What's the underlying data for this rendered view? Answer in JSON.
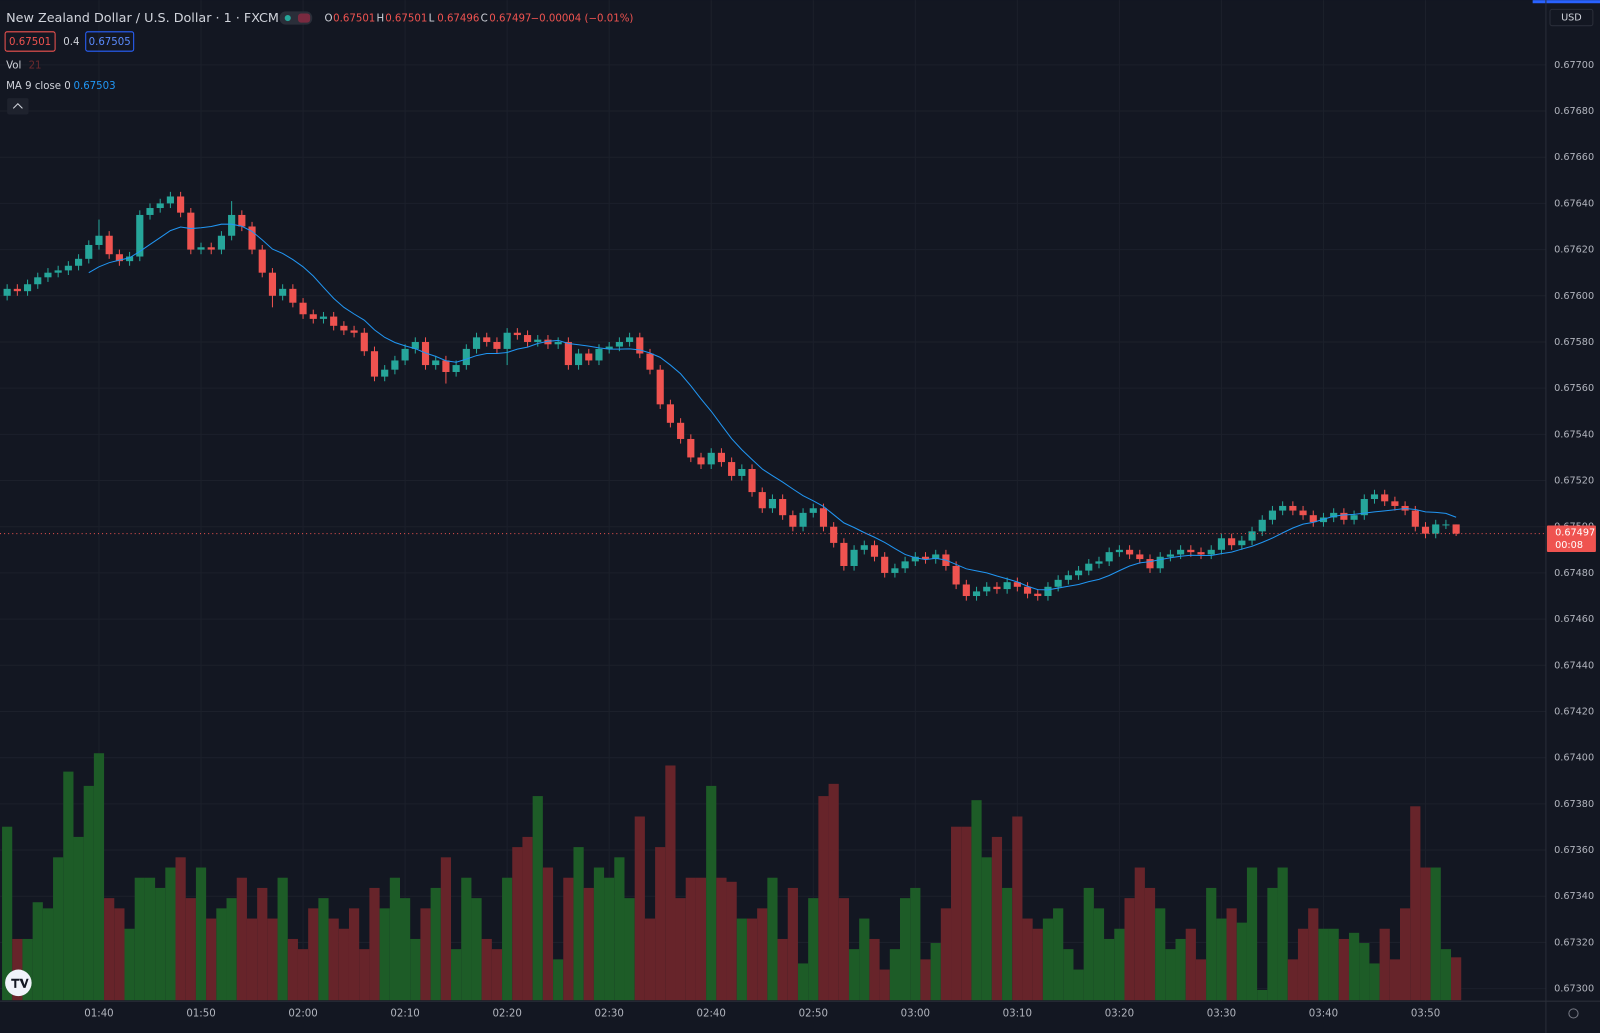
{
  "chart_data": {
    "type": "candlestick",
    "title": "New Zealand Dollar / U.S. Dollar · 1 · FXCM",
    "ohlc_legend": [
      {
        "label": "O",
        "value": 0.67501
      },
      {
        "label": "H",
        "value": 0.67501
      },
      {
        "label": "L",
        "value": 0.67496
      },
      {
        "label": "C",
        "value": 0.67497
      }
    ],
    "change": "−0.00004 (−0.01%)",
    "sell_price": 0.67501,
    "spread": 0.4,
    "buy_price": 0.67505,
    "volume_label": "Vol",
    "volume_last": 21,
    "ma_label": "MA 9 close 0",
    "ma_value": 0.67503,
    "currency": "USD",
    "last_price": 0.67497,
    "countdown": "00:08",
    "categories": [
      null,
      null,
      null,
      null,
      null,
      null,
      null,
      null,
      null,
      "01:40",
      null,
      null,
      null,
      null,
      null,
      null,
      null,
      null,
      null,
      "01:50",
      null,
      null,
      null,
      null,
      null,
      null,
      null,
      null,
      null,
      "02:00",
      null,
      null,
      null,
      null,
      null,
      null,
      null,
      null,
      null,
      "02:10",
      null,
      null,
      null,
      null,
      null,
      null,
      null,
      null,
      null,
      "02:20",
      null,
      null,
      null,
      null,
      null,
      null,
      null,
      null,
      null,
      "02:30",
      null,
      null,
      null,
      null,
      null,
      null,
      null,
      null,
      null,
      "02:40",
      null,
      null,
      null,
      null,
      null,
      null,
      null,
      null,
      null,
      "02:50",
      null,
      null,
      null,
      null,
      null,
      null,
      null,
      null,
      null,
      "03:00",
      null,
      null,
      null,
      null,
      null,
      null,
      null,
      null,
      null,
      "03:10",
      null,
      null,
      null,
      null,
      null,
      null,
      null,
      null,
      null,
      "03:20",
      null,
      null,
      null,
      null,
      null,
      null,
      null,
      null,
      null,
      "03:30",
      null,
      null,
      null,
      null,
      null,
      null,
      null,
      null,
      null,
      "03:40",
      null,
      null,
      null,
      null,
      null,
      null,
      null,
      null,
      null,
      "03:50",
      null,
      null,
      null
    ],
    "open": [
      0.676,
      0.67603,
      0.67602,
      0.67605,
      0.67608,
      0.6761,
      0.67611,
      0.67613,
      0.67616,
      0.67622,
      0.67626,
      0.67618,
      0.67615,
      0.67617,
      0.67635,
      0.67638,
      0.6764,
      0.67643,
      0.67636,
      0.6762,
      0.67621,
      0.6762,
      0.67626,
      0.67635,
      0.6763,
      0.6762,
      0.6761,
      0.676,
      0.67603,
      0.67597,
      0.67592,
      0.6759,
      0.67591,
      0.67587,
      0.67585,
      0.67584,
      0.67576,
      0.67565,
      0.67568,
      0.67572,
      0.67577,
      0.6758,
      0.6757,
      0.67572,
      0.67567,
      0.6757,
      0.67577,
      0.67582,
      0.6758,
      0.67577,
      0.67584,
      0.67583,
      0.6758,
      0.67581,
      0.67579,
      0.6758,
      0.6757,
      0.67575,
      0.67572,
      0.67577,
      0.67578,
      0.6758,
      0.67582,
      0.67575,
      0.67568,
      0.67553,
      0.67545,
      0.67538,
      0.6753,
      0.67527,
      0.67532,
      0.67528,
      0.67522,
      0.67525,
      0.67515,
      0.67508,
      0.67512,
      0.67505,
      0.675,
      0.67506,
      0.67508,
      0.675,
      0.67493,
      0.67483,
      0.6749,
      0.67492,
      0.67487,
      0.6748,
      0.67482,
      0.67485,
      0.67487,
      0.67486,
      0.67488,
      0.67483,
      0.67475,
      0.6747,
      0.67472,
      0.67474,
      0.67473,
      0.67476,
      0.67474,
      0.67471,
      0.6747,
      0.67474,
      0.67477,
      0.67479,
      0.67481,
      0.67484,
      0.67485,
      0.67489,
      0.6749,
      0.67488,
      0.67486,
      0.67482,
      0.67487,
      0.67488,
      0.6749,
      0.67489,
      0.67488,
      0.6749,
      0.67495,
      0.67492,
      0.67494,
      0.67498,
      0.67503,
      0.67507,
      0.67509,
      0.67507,
      0.67505,
      0.67502,
      0.67504,
      0.67506,
      0.67503,
      0.67505,
      0.67512,
      0.67514,
      0.67511,
      0.67509,
      0.67507,
      0.675,
      0.67497,
      0.67501,
      0.67501
    ],
    "high": [
      0.67605,
      0.67605,
      0.67607,
      0.6761,
      0.67612,
      0.67613,
      0.67615,
      0.67618,
      0.67624,
      0.67633,
      0.67628,
      0.6762,
      0.67619,
      0.67637,
      0.6764,
      0.67642,
      0.67645,
      0.67645,
      0.67638,
      0.67623,
      0.67623,
      0.67628,
      0.67641,
      0.67637,
      0.67632,
      0.67622,
      0.67612,
      0.67605,
      0.67605,
      0.67599,
      0.67594,
      0.67593,
      0.67593,
      0.67589,
      0.67587,
      0.67586,
      0.67578,
      0.6757,
      0.67574,
      0.67579,
      0.67582,
      0.67582,
      0.67574,
      0.67574,
      0.67572,
      0.67579,
      0.67584,
      0.67584,
      0.67582,
      0.67586,
      0.67586,
      0.67585,
      0.67583,
      0.67583,
      0.67582,
      0.67582,
      0.67577,
      0.67577,
      0.67579,
      0.6758,
      0.67582,
      0.67584,
      0.67584,
      0.67577,
      0.6757,
      0.67555,
      0.67547,
      0.6754,
      0.67532,
      0.67534,
      0.67534,
      0.6753,
      0.67527,
      0.67527,
      0.67517,
      0.67514,
      0.67514,
      0.67507,
      0.67508,
      0.6751,
      0.6751,
      0.67502,
      0.67495,
      0.67492,
      0.67494,
      0.67494,
      0.67489,
      0.67484,
      0.67487,
      0.67489,
      0.67489,
      0.6749,
      0.6749,
      0.67485,
      0.67477,
      0.67474,
      0.67476,
      0.67476,
      0.67478,
      0.67478,
      0.67476,
      0.67473,
      0.67476,
      0.67479,
      0.67481,
      0.67483,
      0.67486,
      0.67487,
      0.67491,
      0.67492,
      0.67492,
      0.6749,
      0.67488,
      0.67489,
      0.6749,
      0.67492,
      0.67492,
      0.67491,
      0.67492,
      0.67497,
      0.67497,
      0.67496,
      0.675,
      0.67505,
      0.67509,
      0.67511,
      0.67511,
      0.67509,
      0.67507,
      0.67506,
      0.67508,
      0.67508,
      0.67507,
      0.67514,
      0.67516,
      0.67516,
      0.67513,
      0.67511,
      0.67509,
      0.67502,
      0.67503,
      0.67503,
      0.67501
    ],
    "low": [
      0.67598,
      0.676,
      0.676,
      0.67603,
      0.67606,
      0.67608,
      0.67609,
      0.67611,
      0.67614,
      0.6762,
      0.67616,
      0.67613,
      0.67613,
      0.67615,
      0.67633,
      0.67636,
      0.67638,
      0.67634,
      0.67618,
      0.67618,
      0.67618,
      0.67618,
      0.67624,
      0.67628,
      0.67618,
      0.67608,
      0.67595,
      0.67598,
      0.67595,
      0.6759,
      0.67588,
      0.67588,
      0.67585,
      0.67583,
      0.67582,
      0.67574,
      0.67563,
      0.67563,
      0.67566,
      0.6757,
      0.67575,
      0.67568,
      0.67568,
      0.67562,
      0.67565,
      0.67568,
      0.67575,
      0.67578,
      0.67575,
      0.6757,
      0.67581,
      0.67578,
      0.67578,
      0.67577,
      0.67577,
      0.67568,
      0.67568,
      0.6757,
      0.6757,
      0.67575,
      0.67576,
      0.67578,
      0.67573,
      0.67566,
      0.67551,
      0.67543,
      0.67536,
      0.67528,
      0.67525,
      0.67525,
      0.67526,
      0.6752,
      0.6752,
      0.67513,
      0.67506,
      0.67506,
      0.67503,
      0.67498,
      0.67498,
      0.67504,
      0.67498,
      0.67491,
      0.67481,
      0.67481,
      0.67488,
      0.67485,
      0.67478,
      0.67478,
      0.6748,
      0.67483,
      0.67484,
      0.67484,
      0.67481,
      0.67473,
      0.67468,
      0.67468,
      0.6747,
      0.67471,
      0.67471,
      0.67472,
      0.67469,
      0.67468,
      0.67468,
      0.67472,
      0.67475,
      0.67477,
      0.67479,
      0.67482,
      0.67483,
      0.67487,
      0.67486,
      0.67484,
      0.6748,
      0.6748,
      0.67485,
      0.67486,
      0.67487,
      0.67486,
      0.67486,
      0.67488,
      0.6749,
      0.6749,
      0.67492,
      0.67496,
      0.67501,
      0.67505,
      0.67505,
      0.67503,
      0.675,
      0.675,
      0.67502,
      0.67501,
      0.67501,
      0.67503,
      0.6751,
      0.67509,
      0.67507,
      0.67505,
      0.67498,
      0.67495,
      0.67495,
      0.67499,
      0.67496
    ],
    "close": [
      0.67603,
      0.67602,
      0.67605,
      0.67608,
      0.6761,
      0.67611,
      0.67613,
      0.67616,
      0.67622,
      0.67626,
      0.67618,
      0.67615,
      0.67617,
      0.67635,
      0.67638,
      0.6764,
      0.67643,
      0.67636,
      0.6762,
      0.67621,
      0.6762,
      0.67626,
      0.67635,
      0.6763,
      0.6762,
      0.6761,
      0.676,
      0.67603,
      0.67597,
      0.67592,
      0.6759,
      0.67591,
      0.67587,
      0.67585,
      0.67584,
      0.67576,
      0.67565,
      0.67568,
      0.67572,
      0.67577,
      0.6758,
      0.6757,
      0.67572,
      0.67567,
      0.6757,
      0.67577,
      0.67582,
      0.6758,
      0.67577,
      0.67584,
      0.67583,
      0.6758,
      0.67581,
      0.67579,
      0.6758,
      0.6757,
      0.67575,
      0.67572,
      0.67577,
      0.67578,
      0.6758,
      0.67582,
      0.67575,
      0.67568,
      0.67553,
      0.67545,
      0.67538,
      0.6753,
      0.67527,
      0.67532,
      0.67528,
      0.67522,
      0.67525,
      0.67515,
      0.67508,
      0.67512,
      0.67505,
      0.675,
      0.67506,
      0.67508,
      0.675,
      0.67493,
      0.67483,
      0.6749,
      0.67492,
      0.67487,
      0.6748,
      0.67482,
      0.67485,
      0.67487,
      0.67486,
      0.67488,
      0.67483,
      0.67475,
      0.6747,
      0.67472,
      0.67474,
      0.67473,
      0.67476,
      0.67474,
      0.67471,
      0.6747,
      0.67474,
      0.67477,
      0.67479,
      0.67481,
      0.67484,
      0.67485,
      0.67489,
      0.6749,
      0.67488,
      0.67486,
      0.67482,
      0.67487,
      0.67488,
      0.6749,
      0.67489,
      0.67488,
      0.6749,
      0.67495,
      0.67492,
      0.67494,
      0.67498,
      0.67503,
      0.67507,
      0.67509,
      0.67507,
      0.67505,
      0.67502,
      0.67504,
      0.67506,
      0.67503,
      0.67505,
      0.67512,
      0.67514,
      0.67511,
      0.67509,
      0.67507,
      0.675,
      0.67497,
      0.67501,
      0.67501,
      0.67497
    ],
    "volume": [
      85,
      30,
      30,
      48,
      45,
      70,
      112,
      80,
      105,
      121,
      50,
      45,
      35,
      60,
      60,
      55,
      65,
      70,
      50,
      65,
      40,
      45,
      50,
      60,
      40,
      55,
      40,
      60,
      30,
      25,
      45,
      50,
      40,
      35,
      45,
      25,
      55,
      45,
      60,
      50,
      30,
      45,
      55,
      70,
      25,
      60,
      50,
      30,
      25,
      60,
      75,
      80,
      100,
      65,
      20,
      60,
      75,
      55,
      65,
      60,
      70,
      50,
      90,
      40,
      75,
      115,
      50,
      60,
      60,
      105,
      60,
      58,
      40,
      40,
      45,
      60,
      30,
      55,
      18,
      50,
      100,
      106,
      50,
      25,
      40,
      30,
      15,
      25,
      50,
      55,
      20,
      28,
      45,
      85,
      85,
      98,
      70,
      80,
      55,
      90,
      40,
      35,
      40,
      45,
      25,
      15,
      55,
      45,
      30,
      35,
      50,
      65,
      55,
      45,
      25,
      30,
      35,
      20,
      55,
      40,
      45,
      38,
      65,
      5,
      55,
      65,
      20,
      35,
      45,
      35,
      35,
      30,
      33,
      28,
      18,
      35,
      20,
      45,
      95,
      65,
      65,
      25,
      21
    ],
    "up_color": "#26a69a",
    "down_color": "#ef5350",
    "up_volume_color": "#1d5c27",
    "down_volume_color": "#67242a",
    "ma_color": "#2196f3",
    "ylim": [
      0.67295,
      0.67728
    ],
    "yticks": [
      {
        "value": 0.673,
        "label": "0.67300"
      },
      {
        "value": 0.6732,
        "label": "0.67320"
      },
      {
        "value": 0.6734,
        "label": "0.67340"
      },
      {
        "value": 0.6736,
        "label": "0.67360"
      },
      {
        "value": 0.6738,
        "label": "0.67380"
      },
      {
        "value": 0.674,
        "label": "0.67400"
      },
      {
        "value": 0.6742,
        "label": "0.67420"
      },
      {
        "value": 0.6744,
        "label": "0.67440"
      },
      {
        "value": 0.6746,
        "label": "0.67460"
      },
      {
        "value": 0.6748,
        "label": "0.67480"
      },
      {
        "value": 0.675,
        "label": "0.67500"
      },
      {
        "value": 0.6752,
        "label": "0.67520"
      },
      {
        "value": 0.6754,
        "label": "0.67540"
      },
      {
        "value": 0.6756,
        "label": "0.67560"
      },
      {
        "value": 0.6758,
        "label": "0.67580"
      },
      {
        "value": 0.676,
        "label": "0.67600"
      },
      {
        "value": 0.6762,
        "label": "0.67620"
      },
      {
        "value": 0.6764,
        "label": "0.67640"
      },
      {
        "value": 0.6766,
        "label": "0.67660"
      },
      {
        "value": 0.6768,
        "label": "0.67680"
      },
      {
        "value": 0.677,
        "label": "0.67700"
      }
    ],
    "grid": true
  }
}
